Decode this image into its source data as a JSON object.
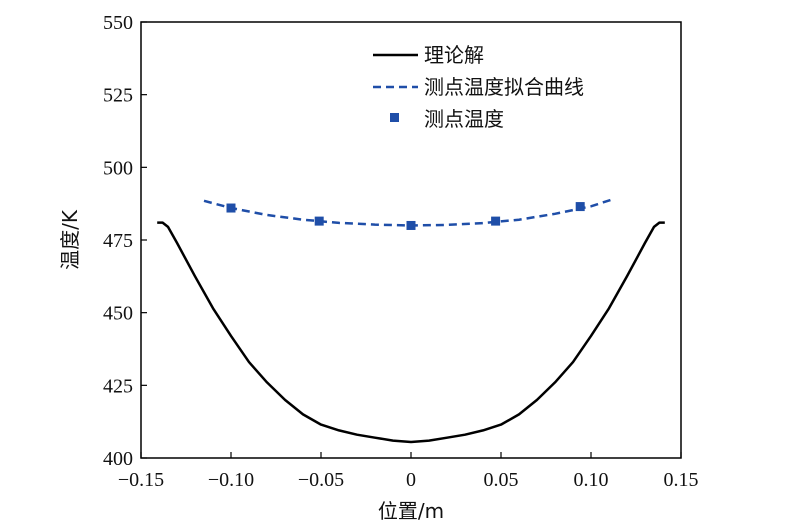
{
  "chart_data": {
    "type": "line",
    "xlabel": "位置/m",
    "ylabel": "温度/K",
    "xlim": [
      -0.15,
      0.15
    ],
    "ylim": [
      400,
      550
    ],
    "xticks": [
      -0.15,
      -0.1,
      -0.05,
      0,
      0.05,
      0.1,
      0.15
    ],
    "xtick_labels": [
      "−0.15",
      "−0.10",
      "−0.05",
      "0",
      "0.05",
      "0.10",
      "0.15"
    ],
    "yticks": [
      400,
      425,
      450,
      475,
      500,
      525,
      550
    ],
    "ytick_labels": [
      "400",
      "425",
      "450",
      "475",
      "500",
      "525",
      "550"
    ],
    "legend_position": "top-right",
    "colors": {
      "theory": "#000000",
      "fit": "#1f4ea8",
      "points": "#1f4ea8"
    },
    "series": [
      {
        "name": "理论解",
        "style": "solid",
        "x": [
          -0.141,
          -0.138,
          -0.135,
          -0.13,
          -0.12,
          -0.11,
          -0.1,
          -0.09,
          -0.08,
          -0.07,
          -0.06,
          -0.05,
          -0.04,
          -0.03,
          -0.02,
          -0.01,
          0,
          0.01,
          0.02,
          0.03,
          0.04,
          0.05,
          0.06,
          0.07,
          0.08,
          0.09,
          0.1,
          0.11,
          0.12,
          0.13,
          0.135,
          0.138,
          0.141
        ],
        "y": [
          481,
          481,
          479.5,
          474,
          462.5,
          451.5,
          442,
          433,
          426,
          420,
          415,
          411.5,
          409.5,
          408,
          407,
          406,
          405.5,
          406,
          407,
          408,
          409.5,
          411.5,
          415,
          420,
          426,
          433,
          442,
          451.5,
          462.5,
          474,
          479.5,
          481,
          481
        ]
      },
      {
        "name": "测点温度拟合曲线",
        "style": "dashed",
        "x": [
          -0.115,
          -0.1,
          -0.08,
          -0.06,
          -0.04,
          -0.02,
          0,
          0.02,
          0.04,
          0.06,
          0.08,
          0.1,
          0.112
        ],
        "y": [
          488.5,
          486,
          483.6,
          482,
          480.9,
          480.3,
          480,
          480.2,
          480.8,
          482,
          484,
          486.6,
          489
        ]
      },
      {
        "name": "测点温度",
        "style": "markers",
        "x": [
          -0.1,
          -0.051,
          0,
          0.047,
          0.094
        ],
        "y": [
          486,
          481.5,
          480,
          481.5,
          486.5
        ]
      }
    ]
  }
}
